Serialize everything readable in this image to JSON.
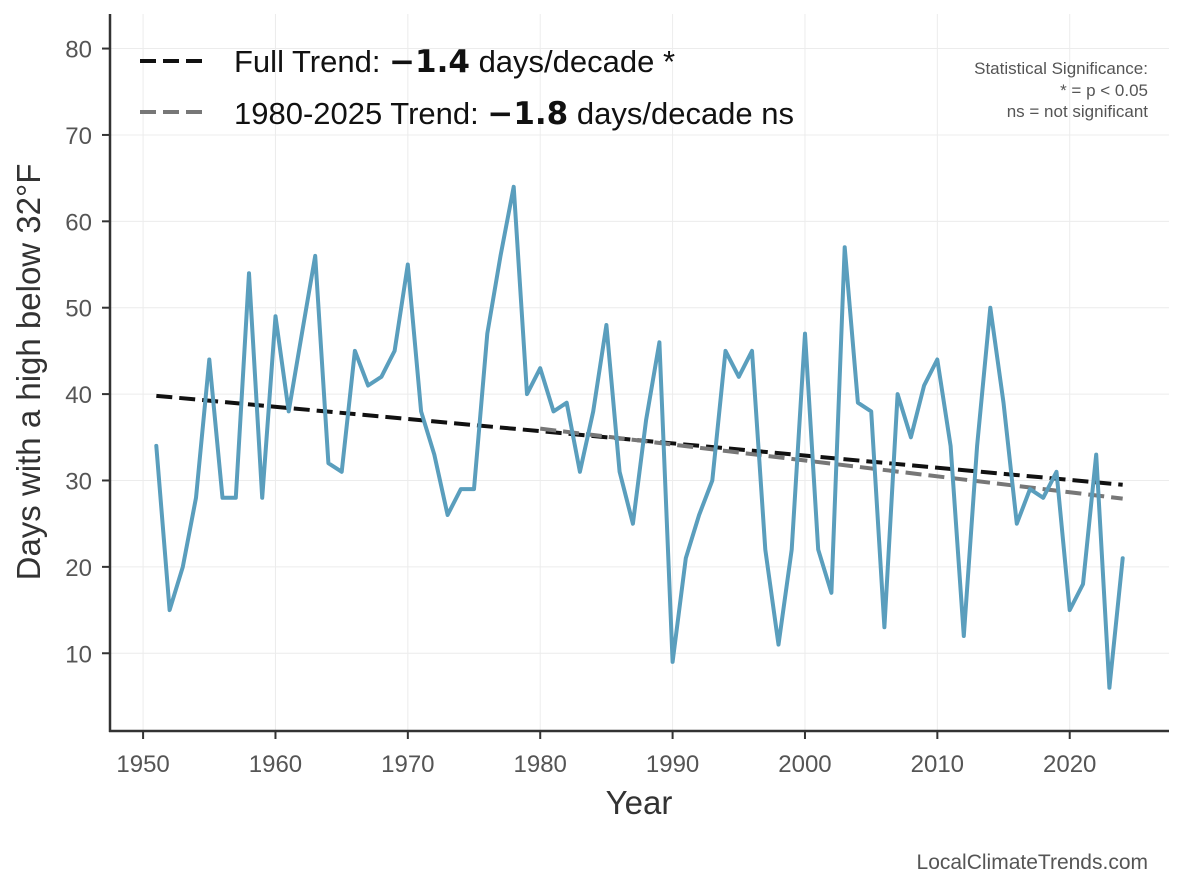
{
  "chart_data": {
    "type": "line",
    "xlabel": "Year",
    "ylabel": "Days with a high below 32°F",
    "xlim": [
      1947.5,
      2027.5
    ],
    "ylim": [
      1,
      84
    ],
    "xticks": [
      1950,
      1960,
      1970,
      1980,
      1990,
      2000,
      2010,
      2020
    ],
    "yticks": [
      10,
      20,
      30,
      40,
      50,
      60,
      70,
      80
    ],
    "grid": true,
    "legend_position": "top-left",
    "series": [
      {
        "color": "#5a9ebd",
        "x": [
          1951,
          1952,
          1953,
          1954,
          1955,
          1956,
          1957,
          1958,
          1959,
          1960,
          1961,
          1962,
          1963,
          1964,
          1965,
          1966,
          1967,
          1968,
          1969,
          1970,
          1971,
          1972,
          1973,
          1974,
          1975,
          1976,
          1977,
          1978,
          1979,
          1980,
          1981,
          1982,
          1983,
          1984,
          1985,
          1986,
          1987,
          1988,
          1989,
          1990,
          1991,
          1992,
          1993,
          1994,
          1995,
          1996,
          1997,
          1998,
          1999,
          2000,
          2001,
          2002,
          2003,
          2004,
          2005,
          2006,
          2007,
          2008,
          2009,
          2010,
          2011,
          2012,
          2013,
          2014,
          2015,
          2016,
          2017,
          2018,
          2019,
          2020,
          2021,
          2022,
          2023,
          2024
        ],
        "values": [
          34,
          15,
          20,
          28,
          44,
          28,
          28,
          54,
          28,
          49,
          38,
          47,
          56,
          32,
          31,
          45,
          41,
          42,
          45,
          55,
          38,
          33,
          26,
          29,
          29,
          47,
          56,
          64,
          40,
          43,
          38,
          39,
          31,
          38,
          48,
          31,
          25,
          37,
          46,
          9,
          21,
          26,
          30,
          45,
          42,
          45,
          22,
          11,
          22,
          47,
          22,
          17,
          57,
          39,
          38,
          13,
          40,
          35,
          41,
          44,
          34,
          12,
          34,
          50,
          39,
          25,
          29,
          28,
          31,
          15,
          18,
          33,
          6,
          21
        ]
      }
    ],
    "trends": [
      {
        "name_prefix": "Full Trend: ",
        "value": "−1.4",
        "name_suffix": " days/decade *",
        "color": "#111111",
        "x": [
          1951,
          2024
        ],
        "y": [
          39.8,
          29.5
        ]
      },
      {
        "name_prefix": "1980-2025 Trend: ",
        "value": "−1.8",
        "name_suffix": " days/decade ns",
        "color": "#777777",
        "x": [
          1980,
          2024
        ],
        "y": [
          36.0,
          27.9
        ]
      }
    ],
    "significance_note": [
      "Statistical Significance:",
      "* = p < 0.05",
      "ns = not significant"
    ],
    "source": "LocalClimateTrends.com"
  }
}
